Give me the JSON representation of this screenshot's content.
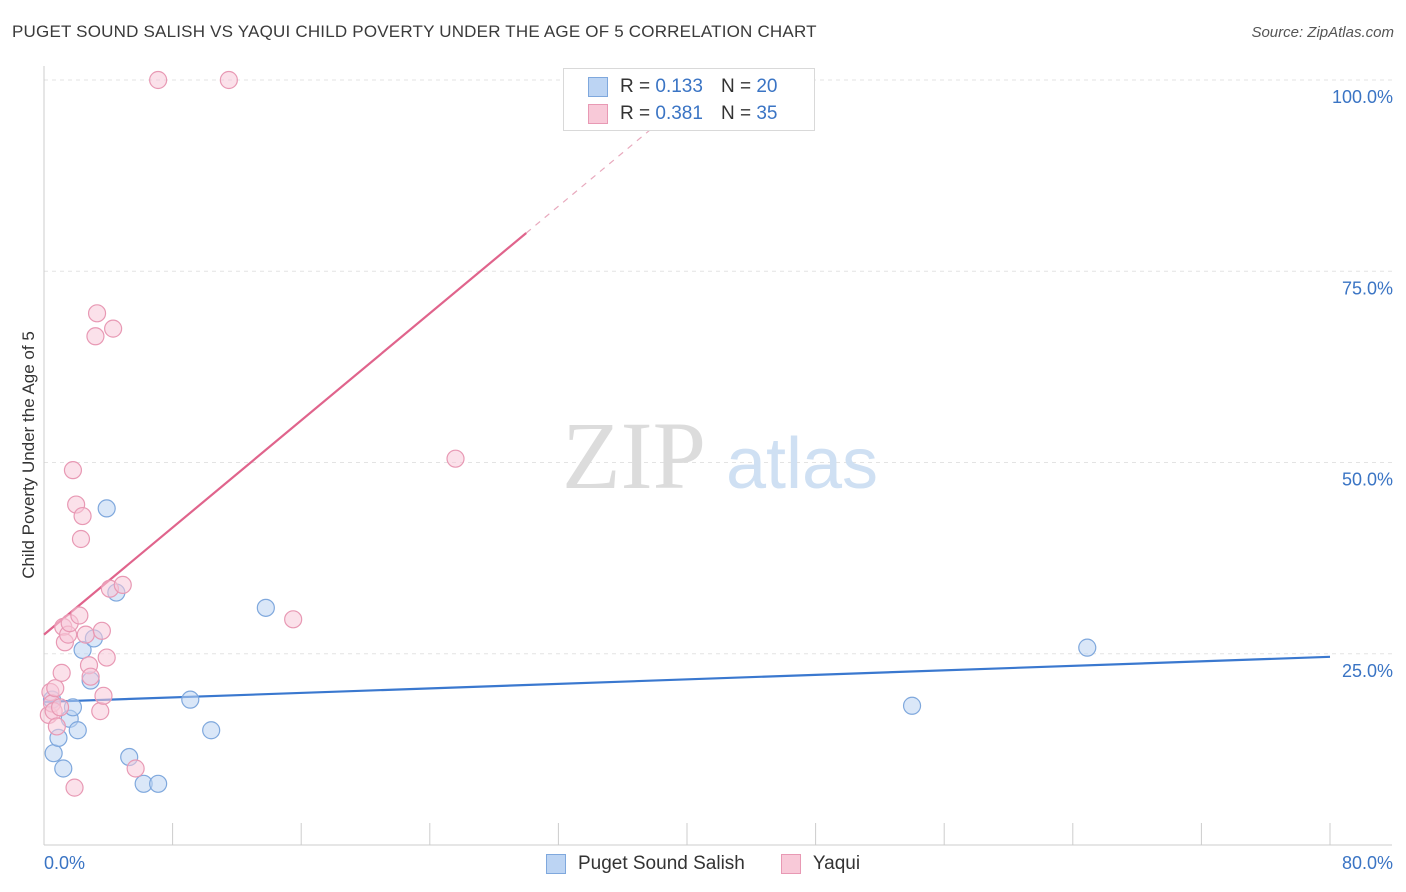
{
  "title": "PUGET SOUND SALISH VS YAQUI CHILD POVERTY UNDER THE AGE OF 5 CORRELATION CHART",
  "source": "Source: ZipAtlas.com",
  "watermark": {
    "zip": "ZIP",
    "atlas": "atlas"
  },
  "stats": [
    {
      "r_label": "R =",
      "r_value": "0.133",
      "n_label": "N =",
      "n_value": "20",
      "color": "#7fa8dd",
      "fill": "#bcd4f3"
    },
    {
      "r_label": "R =",
      "r_value": "0.381",
      "n_label": "N =",
      "n_value": "35",
      "color": "#e899b4",
      "fill": "#f8c9d8"
    }
  ],
  "legend": [
    {
      "label": "Puget Sound Salish",
      "color": "#7fa8dd",
      "fill": "#bcd4f3"
    },
    {
      "label": "Yaqui",
      "color": "#e899b4",
      "fill": "#f8c9d8"
    }
  ],
  "chart_data": {
    "type": "scatter",
    "title": "PUGET SOUND SALISH VS YAQUI CHILD POVERTY UNDER THE AGE OF 5 CORRELATION CHART",
    "xlabel": "",
    "ylabel": "Child Poverty Under the Age of 5",
    "xlim": [
      0,
      80
    ],
    "ylim": [
      0,
      100
    ],
    "x_tick_labels": [
      "0.0%",
      "80.0%"
    ],
    "y_ticks": [
      25,
      50,
      75,
      100
    ],
    "y_tick_labels": [
      "25.0%",
      "50.0%",
      "75.0%",
      "100.0%"
    ],
    "grid": true,
    "series": [
      {
        "name": "Puget Sound Salish",
        "color": "#3a78cf",
        "point_fill": "#bcd4f3",
        "point_stroke": "#7fa8dd",
        "points": [
          [
            0.5,
            19
          ],
          [
            0.6,
            12
          ],
          [
            0.9,
            14
          ],
          [
            1.2,
            10
          ],
          [
            1.6,
            16.5
          ],
          [
            1.8,
            18
          ],
          [
            2.1,
            15
          ],
          [
            2.4,
            25.5
          ],
          [
            2.9,
            21.5
          ],
          [
            3.1,
            27
          ],
          [
            3.9,
            44
          ],
          [
            4.5,
            33
          ],
          [
            5.3,
            11.5
          ],
          [
            6.2,
            8
          ],
          [
            7.1,
            8
          ],
          [
            9.1,
            19
          ],
          [
            10.4,
            15
          ],
          [
            13.8,
            31
          ],
          [
            54.0,
            18.2
          ],
          [
            64.9,
            25.8
          ]
        ],
        "trend": {
          "x": [
            0,
            80
          ],
          "y": [
            18.7,
            24.6
          ],
          "dashed_to": null
        }
      },
      {
        "name": "Yaqui",
        "color": "#e0648c",
        "point_fill": "#f8c9d8",
        "point_stroke": "#e899b4",
        "points": [
          [
            0.3,
            17
          ],
          [
            0.4,
            20
          ],
          [
            0.5,
            18.5
          ],
          [
            0.6,
            17.5
          ],
          [
            0.7,
            20.5
          ],
          [
            0.8,
            15.5
          ],
          [
            1.0,
            18
          ],
          [
            1.1,
            22.5
          ],
          [
            1.2,
            28.5
          ],
          [
            1.3,
            26.5
          ],
          [
            1.5,
            27.5
          ],
          [
            1.6,
            29
          ],
          [
            1.8,
            49
          ],
          [
            1.9,
            7.5
          ],
          [
            2.0,
            44.5
          ],
          [
            2.2,
            30
          ],
          [
            2.3,
            40
          ],
          [
            2.4,
            43
          ],
          [
            2.6,
            27.5
          ],
          [
            2.8,
            23.5
          ],
          [
            2.9,
            22
          ],
          [
            3.2,
            66.5
          ],
          [
            3.3,
            69.5
          ],
          [
            3.5,
            17.5
          ],
          [
            3.6,
            28
          ],
          [
            3.7,
            19.5
          ],
          [
            3.9,
            24.5
          ],
          [
            4.1,
            33.5
          ],
          [
            4.3,
            67.5
          ],
          [
            4.9,
            34
          ],
          [
            5.7,
            10
          ],
          [
            7.1,
            100
          ],
          [
            11.5,
            100
          ],
          [
            15.5,
            29.5
          ],
          [
            25.6,
            50.5
          ]
        ],
        "trend": {
          "x": [
            0,
            30
          ],
          "y": [
            27.5,
            80
          ],
          "dashed_to": [
            40,
            97.5
          ]
        }
      }
    ]
  }
}
